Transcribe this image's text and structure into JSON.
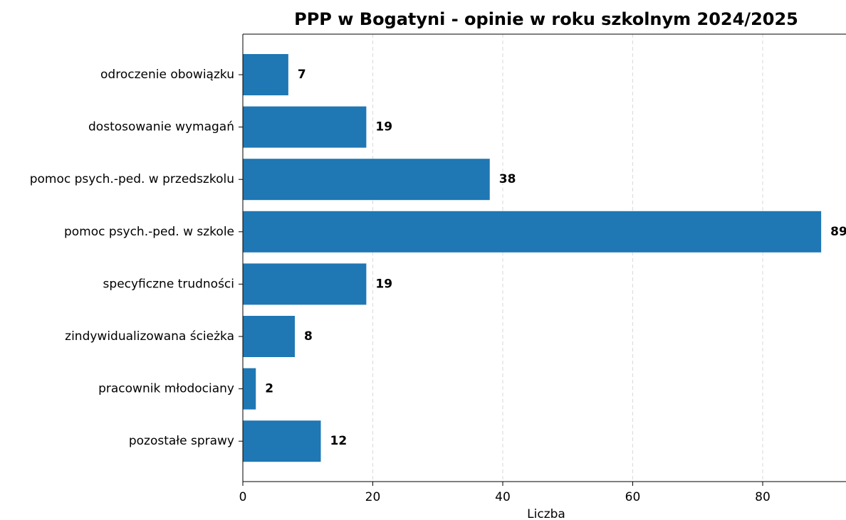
{
  "chart_data": {
    "type": "barh",
    "title": "PPP w Bogatyni - opinie w roku szkolnym 2024/2025",
    "xlabel": "Liczba",
    "categories": [
      "odroczenie obowiązku",
      "dostosowanie wymagań",
      "pomoc psych.-ped. w przedszkolu",
      "pomoc psych.-ped. w szkole",
      "specyficzne trudności",
      "zindywidualizowana ścieżka",
      "pracownik młodociany",
      "pozostałe sprawy"
    ],
    "values": [
      7,
      19,
      38,
      89,
      19,
      8,
      2,
      12
    ],
    "color": "#1f77b4",
    "xlim": [
      0,
      93.45
    ],
    "xticks": [
      0,
      20,
      40,
      60,
      80
    ],
    "grid": true
  }
}
